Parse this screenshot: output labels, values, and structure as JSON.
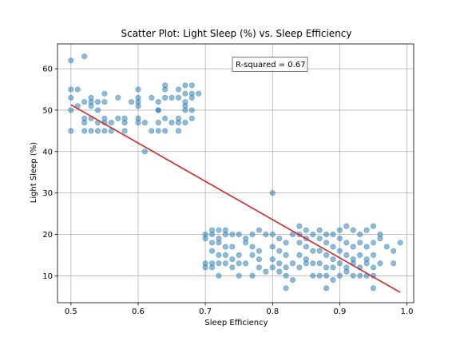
{
  "chart_data": {
    "type": "scatter",
    "title": "Scatter Plot: Light Sleep (%) vs. Sleep Efficiency",
    "xlabel": "Sleep Efficiency",
    "ylabel": "Light Sleep (%)",
    "xlim": [
      0.48,
      1.01
    ],
    "ylim": [
      3.5,
      66
    ],
    "xticks": [
      0.5,
      0.6,
      0.7,
      0.8,
      0.9,
      1.0
    ],
    "xtick_labels": [
      "0.5",
      "0.6",
      "0.7",
      "0.8",
      "0.9",
      "1.0"
    ],
    "yticks": [
      10,
      20,
      30,
      40,
      50,
      60
    ],
    "ytick_labels": [
      "10",
      "20",
      "30",
      "40",
      "50",
      "60"
    ],
    "grid": true,
    "point_color": "#1f77b4",
    "regression_color": "#d62728",
    "annotation": "R-squared = 0.67",
    "regression_line": {
      "x": [
        0.5,
        0.99
      ],
      "y": [
        51.3,
        6.0
      ]
    },
    "points": [
      [
        0.5,
        62
      ],
      [
        0.52,
        63
      ],
      [
        0.5,
        55
      ],
      [
        0.51,
        55
      ],
      [
        0.53,
        53
      ],
      [
        0.55,
        54
      ],
      [
        0.5,
        53
      ],
      [
        0.52,
        52
      ],
      [
        0.53,
        52
      ],
      [
        0.54,
        52
      ],
      [
        0.55,
        52
      ],
      [
        0.57,
        53
      ],
      [
        0.5,
        50
      ],
      [
        0.51,
        51
      ],
      [
        0.53,
        51
      ],
      [
        0.54,
        50
      ],
      [
        0.52,
        48
      ],
      [
        0.53,
        48
      ],
      [
        0.55,
        48
      ],
      [
        0.57,
        48
      ],
      [
        0.58,
        48
      ],
      [
        0.52,
        47
      ],
      [
        0.54,
        47
      ],
      [
        0.55,
        47
      ],
      [
        0.56,
        47
      ],
      [
        0.58,
        47
      ],
      [
        0.5,
        45
      ],
      [
        0.52,
        45
      ],
      [
        0.53,
        45
      ],
      [
        0.54,
        45
      ],
      [
        0.55,
        45
      ],
      [
        0.56,
        45
      ],
      [
        0.58,
        45
      ],
      [
        0.6,
        55
      ],
      [
        0.6,
        53
      ],
      [
        0.6,
        52
      ],
      [
        0.59,
        52
      ],
      [
        0.6,
        51
      ],
      [
        0.6,
        48
      ],
      [
        0.6,
        47
      ],
      [
        0.61,
        47
      ],
      [
        0.63,
        47
      ],
      [
        0.62,
        45
      ],
      [
        0.63,
        45
      ],
      [
        0.64,
        45
      ],
      [
        0.61,
        40
      ],
      [
        0.62,
        53
      ],
      [
        0.63,
        52
      ],
      [
        0.63,
        50
      ],
      [
        0.64,
        55
      ],
      [
        0.64,
        56
      ],
      [
        0.65,
        53
      ],
      [
        0.66,
        53
      ],
      [
        0.67,
        56
      ],
      [
        0.66,
        55
      ],
      [
        0.68,
        56
      ],
      [
        0.67,
        54
      ],
      [
        0.68,
        54
      ],
      [
        0.69,
        54
      ],
      [
        0.68,
        53
      ],
      [
        0.67,
        52
      ],
      [
        0.67,
        51
      ],
      [
        0.67,
        50
      ],
      [
        0.68,
        50
      ],
      [
        0.64,
        48
      ],
      [
        0.66,
        48
      ],
      [
        0.65,
        47
      ],
      [
        0.66,
        47
      ],
      [
        0.67,
        47
      ],
      [
        0.68,
        48
      ],
      [
        0.66,
        45
      ],
      [
        0.63,
        50
      ],
      [
        0.64,
        53
      ],
      [
        0.7,
        20
      ],
      [
        0.71,
        21
      ],
      [
        0.72,
        21
      ],
      [
        0.73,
        21
      ],
      [
        0.7,
        19
      ],
      [
        0.71,
        20
      ],
      [
        0.72,
        19
      ],
      [
        0.73,
        20
      ],
      [
        0.74,
        20
      ],
      [
        0.71,
        18
      ],
      [
        0.72,
        18
      ],
      [
        0.73,
        17
      ],
      [
        0.71,
        16
      ],
      [
        0.72,
        15
      ],
      [
        0.73,
        15
      ],
      [
        0.74,
        14
      ],
      [
        0.75,
        15
      ],
      [
        0.71,
        13
      ],
      [
        0.72,
        13
      ],
      [
        0.73,
        13
      ],
      [
        0.74,
        12
      ],
      [
        0.7,
        12
      ],
      [
        0.71,
        12
      ],
      [
        0.72,
        10
      ],
      [
        0.75,
        10
      ],
      [
        0.75,
        20
      ],
      [
        0.76,
        18
      ],
      [
        0.77,
        17
      ],
      [
        0.78,
        16
      ],
      [
        0.77,
        20
      ],
      [
        0.78,
        21
      ],
      [
        0.76,
        19
      ],
      [
        0.75,
        13
      ],
      [
        0.76,
        13
      ],
      [
        0.77,
        15
      ],
      [
        0.78,
        14
      ],
      [
        0.77,
        10
      ],
      [
        0.78,
        12
      ],
      [
        0.79,
        11
      ],
      [
        0.8,
        30
      ],
      [
        0.8,
        20
      ],
      [
        0.81,
        19
      ],
      [
        0.82,
        18
      ],
      [
        0.8,
        17
      ],
      [
        0.81,
        16
      ],
      [
        0.82,
        15
      ],
      [
        0.8,
        14
      ],
      [
        0.81,
        13
      ],
      [
        0.82,
        12
      ],
      [
        0.8,
        12
      ],
      [
        0.81,
        11
      ],
      [
        0.82,
        10
      ],
      [
        0.83,
        13
      ],
      [
        0.83,
        9
      ],
      [
        0.82,
        7
      ],
      [
        0.84,
        20
      ],
      [
        0.85,
        19
      ],
      [
        0.84,
        18
      ],
      [
        0.85,
        17
      ],
      [
        0.86,
        16
      ],
      [
        0.84,
        15
      ],
      [
        0.85,
        14
      ],
      [
        0.86,
        13
      ],
      [
        0.84,
        12
      ],
      [
        0.85,
        13
      ],
      [
        0.86,
        10
      ],
      [
        0.87,
        10
      ],
      [
        0.84,
        22
      ],
      [
        0.85,
        21
      ],
      [
        0.86,
        20
      ],
      [
        0.87,
        21
      ],
      [
        0.88,
        20
      ],
      [
        0.89,
        20
      ],
      [
        0.87,
        19
      ],
      [
        0.88,
        18
      ],
      [
        0.89,
        17
      ],
      [
        0.87,
        16
      ],
      [
        0.88,
        15
      ],
      [
        0.89,
        14
      ],
      [
        0.87,
        13
      ],
      [
        0.88,
        12
      ],
      [
        0.89,
        12
      ],
      [
        0.88,
        10
      ],
      [
        0.89,
        9
      ],
      [
        0.88,
        7
      ],
      [
        0.9,
        21
      ],
      [
        0.91,
        22
      ],
      [
        0.92,
        21
      ],
      [
        0.93,
        20
      ],
      [
        0.94,
        21
      ],
      [
        0.95,
        22
      ],
      [
        0.9,
        19
      ],
      [
        0.91,
        18
      ],
      [
        0.92,
        17
      ],
      [
        0.93,
        18
      ],
      [
        0.94,
        17
      ],
      [
        0.95,
        18
      ],
      [
        0.96,
        19
      ],
      [
        0.97,
        17
      ],
      [
        0.98,
        16
      ],
      [
        0.99,
        18
      ],
      [
        0.9,
        16
      ],
      [
        0.91,
        15
      ],
      [
        0.92,
        14
      ],
      [
        0.93,
        15
      ],
      [
        0.94,
        14
      ],
      [
        0.95,
        15
      ],
      [
        0.96,
        13
      ],
      [
        0.9,
        13
      ],
      [
        0.91,
        12
      ],
      [
        0.92,
        13
      ],
      [
        0.93,
        12
      ],
      [
        0.94,
        13
      ],
      [
        0.95,
        12
      ],
      [
        0.98,
        13
      ],
      [
        0.9,
        10
      ],
      [
        0.91,
        11
      ],
      [
        0.92,
        10
      ],
      [
        0.93,
        10
      ],
      [
        0.94,
        10
      ],
      [
        0.95,
        10
      ],
      [
        0.95,
        7
      ],
      [
        0.96,
        20
      ],
      [
        0.83,
        20
      ],
      [
        0.79,
        20
      ],
      [
        0.74,
        17
      ],
      [
        0.7,
        13
      ]
    ]
  }
}
